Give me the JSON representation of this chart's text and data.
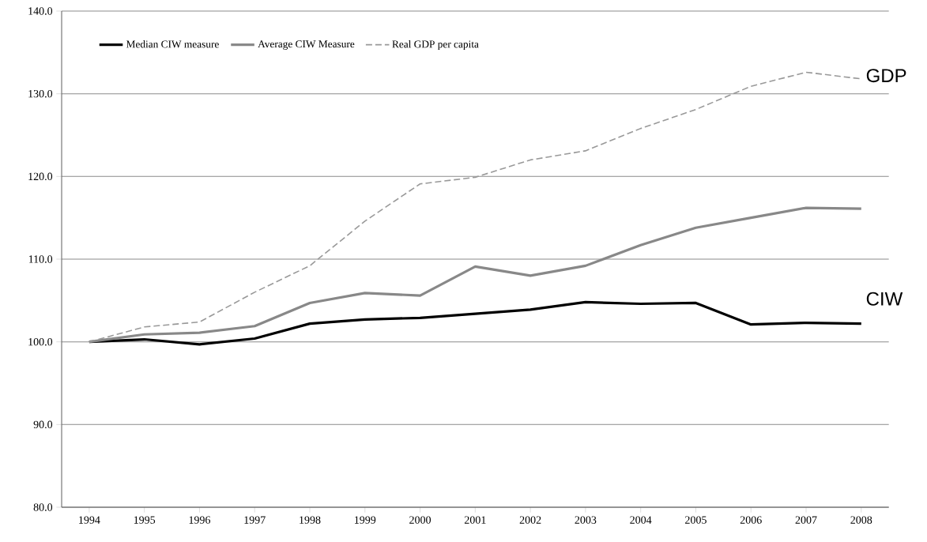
{
  "chart_data": {
    "type": "line",
    "categories": [
      "1994",
      "1995",
      "1996",
      "1997",
      "1998",
      "1999",
      "2000",
      "2001",
      "2002",
      "2003",
      "2004",
      "2005",
      "2006",
      "2007",
      "2008"
    ],
    "series": [
      {
        "name": "Median CIW measure",
        "color": "#000000",
        "line_style": "solid",
        "values": [
          100.0,
          100.3,
          99.7,
          100.4,
          102.2,
          102.7,
          102.9,
          103.4,
          103.9,
          104.8,
          104.6,
          104.7,
          102.1,
          102.3,
          102.2
        ]
      },
      {
        "name": "Average CIW Measure",
        "color": "#888888",
        "line_style": "solid",
        "values": [
          100.0,
          100.9,
          101.1,
          101.9,
          104.7,
          105.9,
          105.6,
          109.1,
          108.0,
          109.2,
          111.7,
          113.8,
          115.0,
          116.2,
          116.1
        ]
      },
      {
        "name": "Real GDP per capita",
        "color": "#999999",
        "line_style": "dashed",
        "values": [
          100.0,
          101.8,
          102.4,
          106.0,
          109.2,
          114.6,
          119.1,
          119.9,
          122.0,
          123.1,
          125.8,
          128.1,
          130.9,
          132.6,
          131.8
        ]
      }
    ],
    "ylim": [
      80,
      140
    ],
    "yticks": [
      {
        "value": 80,
        "label": "80.0"
      },
      {
        "value": 90,
        "label": "90.0"
      },
      {
        "value": 100,
        "label": "100.0"
      },
      {
        "value": 110,
        "label": "110.0"
      },
      {
        "value": 120,
        "label": "120.0"
      },
      {
        "value": 130,
        "label": "130.0"
      },
      {
        "value": 140,
        "label": "140.0"
      }
    ],
    "grid": "y",
    "legend": "top left",
    "marker": "none",
    "annotations": [
      "GDP",
      "CIW"
    ]
  }
}
